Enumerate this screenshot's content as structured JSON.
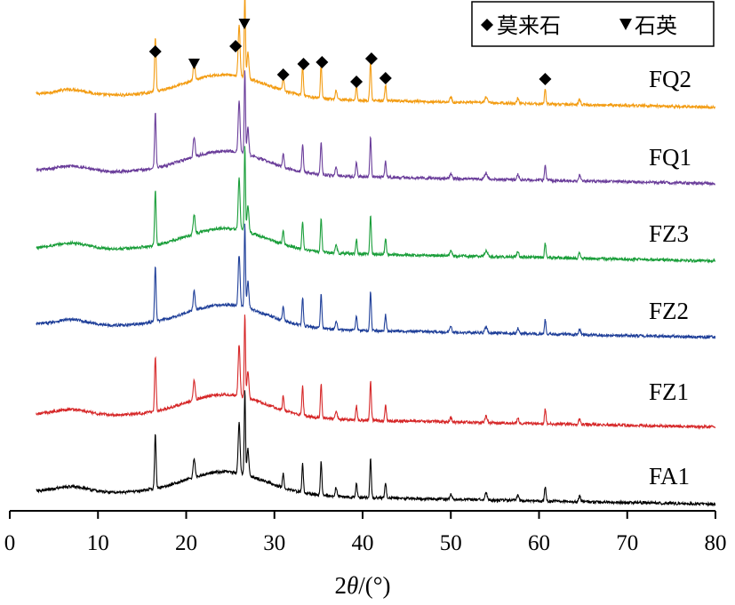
{
  "chart_data": {
    "type": "line",
    "title": "",
    "xlabel_prefix": "2",
    "xlabel_theta": "θ",
    "xlabel_suffix": "/(°)",
    "ylabel": "",
    "xlim": [
      0,
      80
    ],
    "x_ticks": [
      0,
      10,
      20,
      30,
      40,
      50,
      60,
      70,
      80
    ],
    "x_range_data": [
      3,
      80
    ],
    "grid": false,
    "legend": {
      "placement": "top-right",
      "entries": [
        {
          "marker": "diamond",
          "label": "莫来石"
        },
        {
          "marker": "triangle-down",
          "label": "石英"
        }
      ]
    },
    "peaks": [
      {
        "pos": 16.5,
        "h": 62,
        "w": 0.12
      },
      {
        "pos": 20.9,
        "h": 22,
        "w": 0.15
      },
      {
        "pos": 26.0,
        "h": 58,
        "w": 0.15
      },
      {
        "pos": 26.65,
        "h": 95,
        "w": 0.1
      },
      {
        "pos": 27.0,
        "h": 30,
        "w": 0.15
      },
      {
        "pos": 31.0,
        "h": 16,
        "w": 0.12
      },
      {
        "pos": 33.2,
        "h": 32,
        "w": 0.12
      },
      {
        "pos": 35.3,
        "h": 38,
        "w": 0.12
      },
      {
        "pos": 37.0,
        "h": 10,
        "w": 0.15
      },
      {
        "pos": 39.3,
        "h": 16,
        "w": 0.12
      },
      {
        "pos": 40.9,
        "h": 44,
        "w": 0.12
      },
      {
        "pos": 42.6,
        "h": 18,
        "w": 0.12
      },
      {
        "pos": 50.0,
        "h": 6,
        "w": 0.15
      },
      {
        "pos": 54.0,
        "h": 7,
        "w": 0.2
      },
      {
        "pos": 57.6,
        "h": 6,
        "w": 0.15
      },
      {
        "pos": 60.7,
        "h": 16,
        "w": 0.12
      },
      {
        "pos": 64.6,
        "h": 6,
        "w": 0.15
      }
    ],
    "series": [
      {
        "name": "FQ2",
        "color": "#f39c12"
      },
      {
        "name": "FQ1",
        "color": "#6a3d9a"
      },
      {
        "name": "FZ3",
        "color": "#1a9e3a"
      },
      {
        "name": "FZ2",
        "color": "#1f3f99"
      },
      {
        "name": "FZ1",
        "color": "#d62728"
      },
      {
        "name": "FA1",
        "color": "#000000"
      }
    ],
    "phase_markers": [
      {
        "phase": "mullite",
        "symbol": "◆",
        "x": 16.5
      },
      {
        "phase": "quartz",
        "symbol": "▼",
        "x": 20.9
      },
      {
        "phase": "mullite",
        "symbol": "◆",
        "x": 25.6
      },
      {
        "phase": "quartz",
        "symbol": "▼",
        "x": 26.6
      },
      {
        "phase": "mullite",
        "symbol": "◆",
        "x": 31.0
      },
      {
        "phase": "mullite",
        "symbol": "◆",
        "x": 33.3
      },
      {
        "phase": "mullite",
        "symbol": "◆",
        "x": 35.4
      },
      {
        "phase": "mullite",
        "symbol": "◆",
        "x": 39.3
      },
      {
        "phase": "mullite",
        "symbol": "◆",
        "x": 41.0
      },
      {
        "phase": "mullite",
        "symbol": "◆",
        "x": 42.6
      },
      {
        "phase": "mullite",
        "symbol": "◆",
        "x": 60.7
      }
    ]
  }
}
